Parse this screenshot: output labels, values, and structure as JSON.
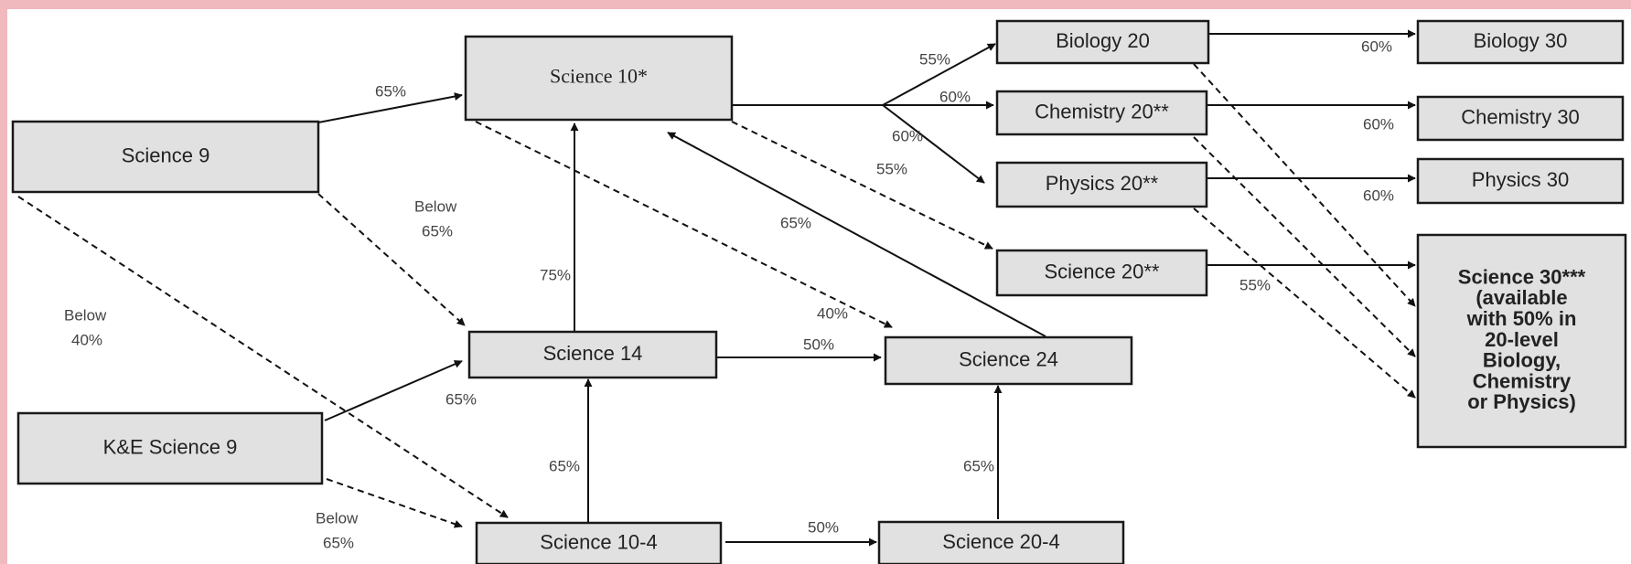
{
  "nodes": [
    {
      "label": [
        "Science 10*"
      ]
    },
    {
      "label": [
        "Science 9"
      ]
    },
    {
      "label": [
        "K&E Science 9"
      ]
    },
    {
      "label": [
        "Science 14"
      ]
    },
    {
      "label": [
        "Science 24"
      ]
    },
    {
      "label": [
        "Science 10-4"
      ]
    },
    {
      "label": [
        "Science 20-4"
      ]
    },
    {
      "label": [
        "Biology 20"
      ]
    },
    {
      "label": [
        "Chemistry 20**"
      ]
    },
    {
      "label": [
        "Physics 20**"
      ]
    },
    {
      "label": [
        "Science 20**"
      ]
    },
    {
      "label": [
        "Biology 30"
      ]
    },
    {
      "label": [
        "Chemistry 30"
      ]
    },
    {
      "label": [
        "Physics 30"
      ]
    },
    {
      "label": [
        "Science 30***",
        "(available",
        "with 50% in",
        "20-level",
        "Biology,",
        "Chemistry",
        "or Physics)"
      ]
    }
  ],
  "edges": [
    {
      "label": [
        "65%"
      ]
    },
    {
      "label": [
        "Below",
        "65%"
      ]
    },
    {
      "label": [
        "Below",
        "40%"
      ]
    },
    {
      "label": [
        "65%"
      ]
    },
    {
      "label": [
        "Below",
        "65%"
      ]
    },
    {
      "label": [
        "65%"
      ]
    },
    {
      "label": [
        "75%"
      ]
    },
    {
      "label": [
        "40%"
      ]
    },
    {
      "label": [
        "65%"
      ]
    },
    {
      "label": [
        "50%"
      ]
    },
    {
      "label": [
        "65%"
      ]
    },
    {
      "label": [
        "50%"
      ]
    },
    {
      "label": [
        "55%"
      ]
    },
    {
      "label": [
        "60%"
      ]
    },
    {
      "label": [
        "60%"
      ]
    },
    {
      "label": [
        "55%"
      ]
    },
    {
      "label": [
        "60%"
      ]
    },
    {
      "label": [
        "60%"
      ]
    },
    {
      "label": [
        "60%"
      ]
    },
    {
      "label": [
        "55%"
      ]
    },
    {
      "label": []
    },
    {
      "label": []
    },
    {
      "label": []
    }
  ]
}
